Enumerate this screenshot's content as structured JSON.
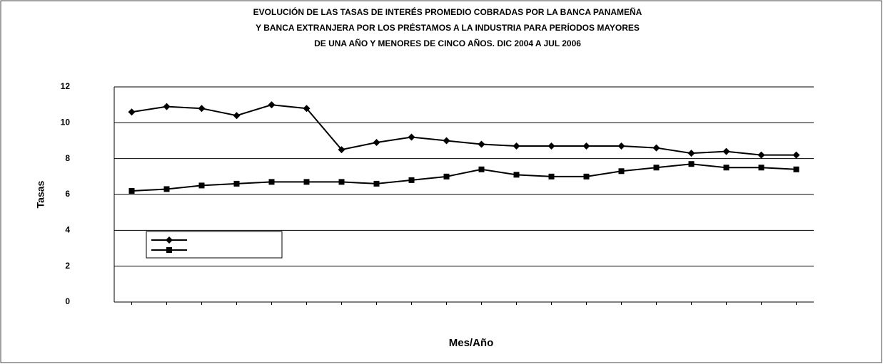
{
  "chart_data": {
    "type": "line",
    "title": [
      "EVOLUCIÓN DE LAS TASAS DE INTERÉS PROMEDIO COBRADAS POR LA BANCA PANAMEÑA",
      "Y BANCA EXTRANJERA POR LOS PRÉSTAMOS A LA INDUSTRIA PARA PERÍODOS MAYORES",
      "DE UNA AÑO Y MENORES DE CINCO AÑOS. DIC 2004 A JUL 2006"
    ],
    "x_label": "Mes/Año",
    "y_label": "Tasas",
    "categories": [
      null,
      null,
      null,
      null,
      null,
      null,
      null,
      null,
      null,
      null,
      null,
      null,
      null,
      null,
      null,
      null,
      null,
      null,
      null,
      null
    ],
    "series": [
      {
        "color": "#000000",
        "marker": "diamond",
        "values": [
          10.6,
          10.9,
          10.8,
          10.4,
          11.0,
          10.8,
          8.5,
          8.9,
          9.2,
          9.0,
          8.8,
          8.7,
          8.7,
          8.7,
          8.7,
          8.6,
          8.3,
          8.4,
          8.2,
          8.2
        ]
      },
      {
        "color": "#000000",
        "marker": "square",
        "values": [
          6.2,
          6.3,
          6.5,
          6.6,
          6.7,
          6.7,
          6.7,
          6.6,
          6.8,
          7.0,
          7.4,
          7.1,
          7.0,
          7.0,
          7.3,
          7.5,
          7.7,
          7.5,
          7.5,
          7.4
        ]
      }
    ],
    "ylim": [
      0,
      12
    ],
    "yticks": [
      0,
      2,
      4,
      6,
      8,
      10,
      12
    ],
    "grid": true
  }
}
